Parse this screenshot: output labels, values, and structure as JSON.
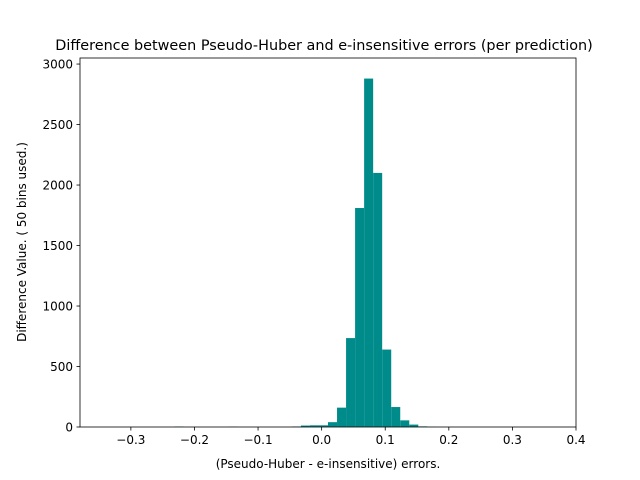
{
  "chart_data": {
    "type": "bar",
    "title": "Difference between  Pseudo-Huber and e-insensitive errors (per prediction)",
    "xlabel": "(Pseudo-Huber - e-insensitive) errors.",
    "ylabel": "Difference Value. ( 50 bins used.)",
    "xlim": [
      -0.38,
      0.4
    ],
    "ylim": [
      0,
      3050
    ],
    "xticks": [
      -0.3,
      -0.2,
      -0.1,
      0.0,
      0.1,
      0.2,
      0.3,
      0.4
    ],
    "xtick_labels": [
      "−0.3",
      "−0.2",
      "−0.1",
      "0.0",
      "0.1",
      "0.2",
      "0.3",
      "0.4"
    ],
    "yticks": [
      0,
      500,
      1000,
      1500,
      2000,
      2500,
      3000
    ],
    "ytick_labels": [
      "0",
      "500",
      "1000",
      "1500",
      "2000",
      "2500",
      "3000"
    ],
    "bar_color": "#008b8b",
    "bin_start": -0.345,
    "bin_width": 0.0142,
    "values": [
      0,
      0,
      0,
      0,
      0,
      0,
      0,
      0,
      3,
      0,
      0,
      0,
      0,
      0,
      2,
      0,
      0,
      0,
      0,
      0,
      0,
      4,
      12,
      14,
      14,
      40,
      160,
      735,
      1810,
      2880,
      2100,
      640,
      165,
      55,
      20,
      5,
      1,
      0,
      0,
      0,
      0,
      0,
      0,
      0,
      0,
      0,
      0,
      0,
      0,
      0
    ]
  }
}
